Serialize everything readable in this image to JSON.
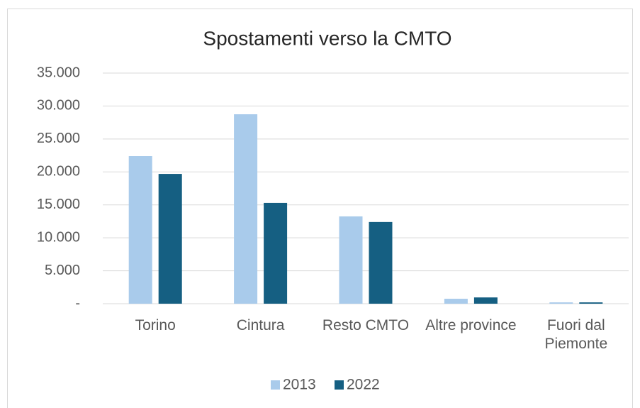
{
  "chart_data": {
    "type": "bar",
    "title": "Spostamenti verso la CMTO",
    "categories": [
      "Torino",
      "Cintura",
      "Resto CMTO",
      "Altre province",
      "Fuori dal Piemonte"
    ],
    "series": [
      {
        "name": "2013",
        "color": "#a9cbeb",
        "values": [
          22400,
          28750,
          13250,
          750,
          200
        ]
      },
      {
        "name": "2022",
        "color": "#155f82",
        "values": [
          19700,
          15300,
          12400,
          950,
          200
        ]
      }
    ],
    "ylim": [
      0,
      35000
    ],
    "yticks": [
      {
        "value": 0,
        "label": "-"
      },
      {
        "value": 5000,
        "label": "5.000"
      },
      {
        "value": 10000,
        "label": "10.000"
      },
      {
        "value": 15000,
        "label": "15.000"
      },
      {
        "value": 20000,
        "label": "20.000"
      },
      {
        "value": 25000,
        "label": "25.000"
      },
      {
        "value": 30000,
        "label": "30.000"
      },
      {
        "value": 35000,
        "label": "35.000"
      }
    ],
    "grid": true,
    "legend": "bottom"
  }
}
